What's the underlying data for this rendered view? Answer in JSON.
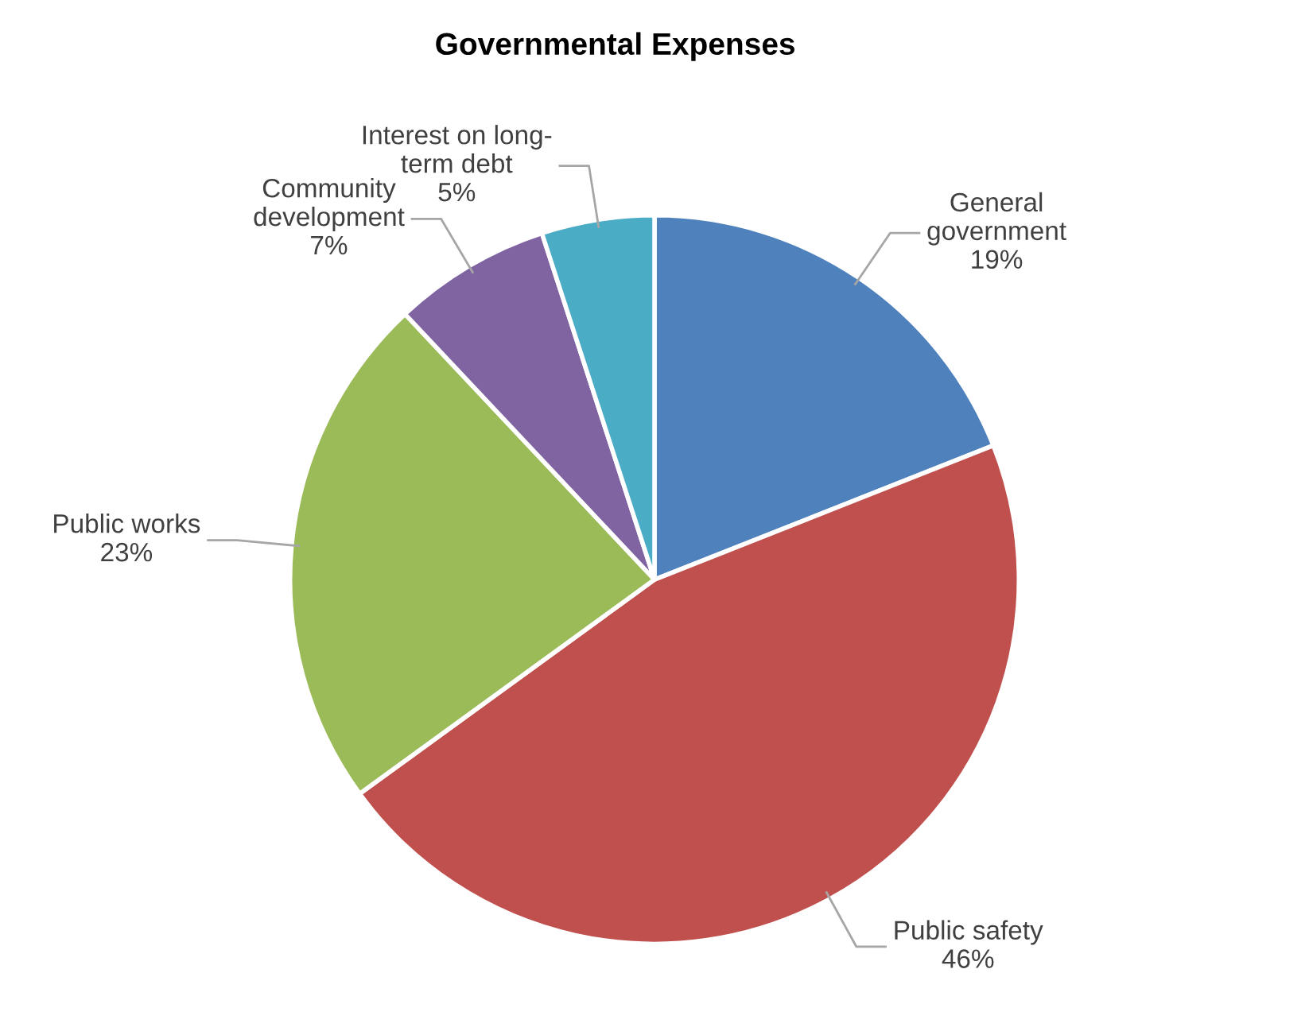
{
  "chart_data": {
    "type": "pie",
    "title": "Governmental Expenses",
    "categories": [
      "General\ngovernment",
      "Public safety",
      "Public works",
      "Community\ndevelopment",
      "Interest on long-\nterm debt"
    ],
    "values": [
      19,
      46,
      23,
      7,
      5
    ],
    "colors": [
      "#4f81bd",
      "#c0504d",
      "#9bbb59",
      "#8064a2",
      "#4bacc6"
    ],
    "value_labels": [
      "19%",
      "46%",
      "23%",
      "7%",
      "5%"
    ],
    "legend": false
  }
}
